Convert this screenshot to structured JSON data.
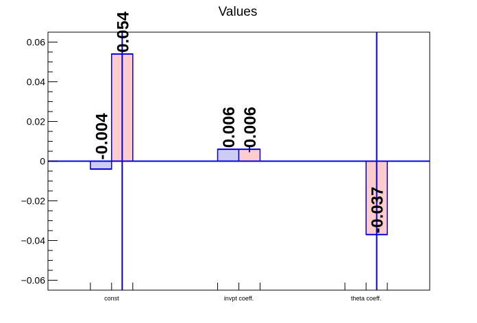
{
  "chart_data": {
    "type": "bar",
    "title": "Values",
    "categories": [
      "const",
      "invpt coeff.",
      "theta coeff."
    ],
    "ylim": [
      -0.065,
      0.065
    ],
    "yticks": [
      "0.06",
      "0.04",
      "0.02",
      "0",
      "−0.02",
      "−0.04",
      "−0.06"
    ],
    "ytick_values": [
      0.06,
      0.04,
      0.02,
      0,
      -0.02,
      -0.04,
      -0.06
    ],
    "grid": false,
    "series": [
      {
        "color": "#ccccf5",
        "values": [
          -0.004,
          0.006,
          null
        ],
        "errors": [
          0,
          0,
          null
        ],
        "labels": [
          "-0.004",
          "0.006",
          ""
        ]
      },
      {
        "color": "#ffcccc",
        "values": [
          0.054,
          0.006,
          -0.037
        ],
        "errors": [
          0.2,
          0.0015,
          0.2
        ],
        "labels": [
          "0.054",
          "0.006",
          "-0.037"
        ]
      }
    ],
    "bar_edge_color": "#0000dd"
  }
}
